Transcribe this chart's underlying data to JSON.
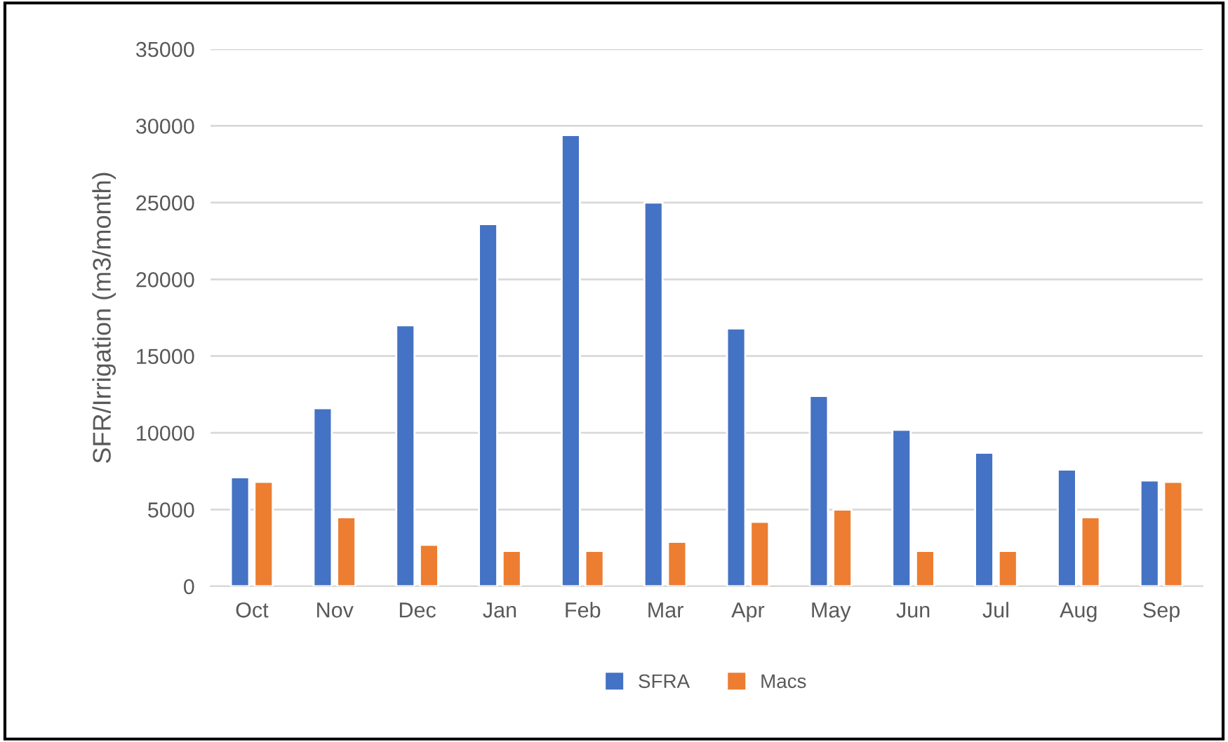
{
  "chart_data": {
    "type": "bar",
    "ylabel": "SFR/Irrigation (m3/month)",
    "categories": [
      "Oct",
      "Nov",
      "Dec",
      "Jan",
      "Feb",
      "Mar",
      "Apr",
      "May",
      "Jun",
      "Jul",
      "Aug",
      "Sep"
    ],
    "series": [
      {
        "name": "SFRA",
        "color": "#4472c4",
        "values": [
          7100,
          11600,
          17000,
          23600,
          29400,
          25000,
          16800,
          12400,
          10200,
          8700,
          7600,
          6900
        ]
      },
      {
        "name": "Macs",
        "color": "#ed7d31",
        "values": [
          6800,
          4500,
          2700,
          2300,
          2300,
          2900,
          4200,
          5000,
          2300,
          2300,
          4500,
          6800
        ]
      }
    ],
    "ylim": [
      0,
      35000
    ],
    "yticks": [
      0,
      5000,
      10000,
      15000,
      20000,
      25000,
      30000,
      35000
    ],
    "grid": "y",
    "legend": "bottom"
  }
}
